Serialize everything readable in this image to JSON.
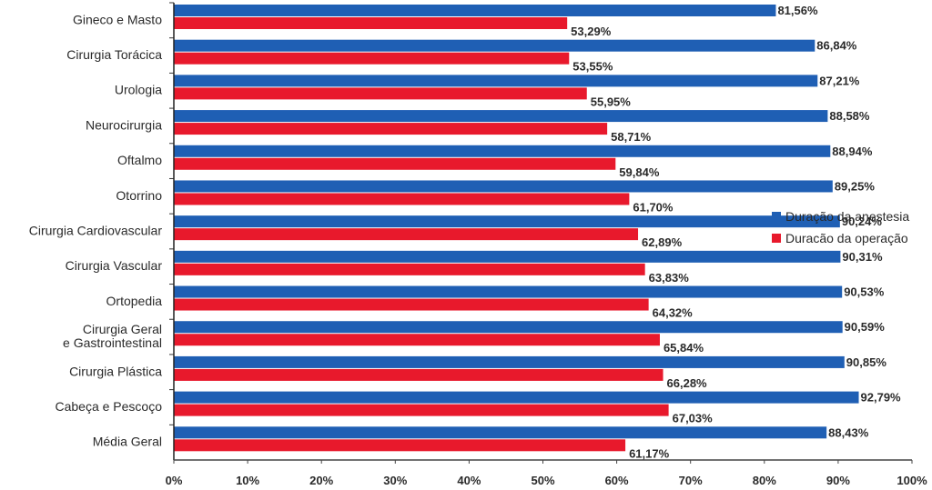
{
  "chart_data": {
    "type": "bar",
    "orientation": "horizontal",
    "title": "",
    "xlabel": "",
    "ylabel": "",
    "xlim": [
      0,
      100
    ],
    "x_ticks": [
      "0%",
      "10%",
      "20%",
      "30%",
      "40%",
      "50%",
      "60%",
      "70%",
      "80%",
      "90%",
      "100%"
    ],
    "grid": false,
    "legend_position": "right",
    "categories": [
      [
        "Gineco e Masto"
      ],
      [
        "Cirurgia Torácica"
      ],
      [
        "Urologia"
      ],
      [
        "Neurocirurgia"
      ],
      [
        "Oftalmo"
      ],
      [
        "Otorrino"
      ],
      [
        "Cirurgia Cardiovascular"
      ],
      [
        "Cirurgia Vascular"
      ],
      [
        "Ortopedia"
      ],
      [
        "Cirurgia Geral",
        "e Gastrointestinal"
      ],
      [
        "Cirurgia Plástica"
      ],
      [
        "Cabeça e Pescoço"
      ],
      [
        "Média Geral"
      ]
    ],
    "series": [
      {
        "name": "Duração da anestesia",
        "color": "#1f5fb4",
        "values": [
          81.56,
          86.84,
          87.21,
          88.58,
          88.94,
          89.25,
          90.24,
          90.31,
          90.53,
          90.59,
          90.85,
          92.79,
          88.43
        ],
        "labels": [
          "81,56%",
          "86,84%",
          "87,21%",
          "88,58%",
          "88,94%",
          "89,25%",
          "90,24%",
          "90,31%",
          "90,53%",
          "90,59%",
          "90,85%",
          "92,79%",
          "88,43%"
        ]
      },
      {
        "name": "Duracão da operação",
        "color": "#e8192c",
        "values": [
          53.29,
          53.55,
          55.95,
          58.71,
          59.84,
          61.7,
          62.89,
          63.83,
          64.32,
          65.84,
          66.28,
          67.03,
          61.17
        ],
        "labels": [
          "53,29%",
          "53,55%",
          "55,95%",
          "58,71%",
          "59,84%",
          "61,70%",
          "62,89%",
          "63,83%",
          "64,32%",
          "65,84%",
          "66,28%",
          "67,03%",
          "61,17%"
        ]
      }
    ]
  },
  "legend": {
    "items": [
      {
        "label": "Duração da anestesia",
        "color": "#1f5fb4"
      },
      {
        "label": "Duracão da operação",
        "color": "#e8192c"
      }
    ]
  }
}
